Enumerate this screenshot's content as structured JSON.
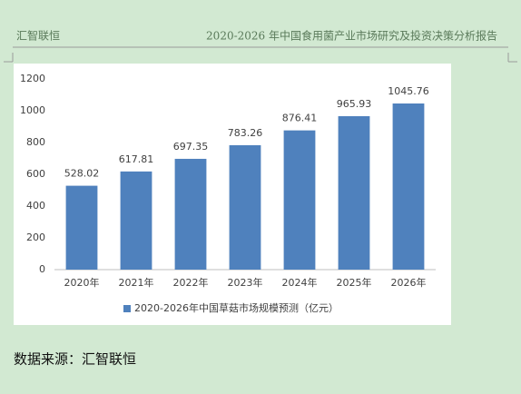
{
  "header": {
    "left": "汇智联恒",
    "right": "2020-2026 年中国食用菌产业市场研究及投资决策分析报告"
  },
  "chart_data": {
    "type": "bar",
    "categories": [
      "2020年",
      "2021年",
      "2022年",
      "2023年",
      "2024年",
      "2025年",
      "2026年"
    ],
    "series": [
      {
        "name": "2020-2026年中国草菇市场规模预测（亿元）",
        "color": "#4f81bd",
        "values": [
          528.02,
          617.81,
          697.35,
          783.26,
          876.41,
          965.93,
          1045.76
        ]
      }
    ],
    "ylim": [
      0,
      1200
    ],
    "yticks": [
      0,
      200,
      400,
      600,
      800,
      1000,
      1200
    ],
    "grid": false,
    "legend": "bottom"
  },
  "footer": {
    "source": "数据来源：汇智联恒"
  }
}
